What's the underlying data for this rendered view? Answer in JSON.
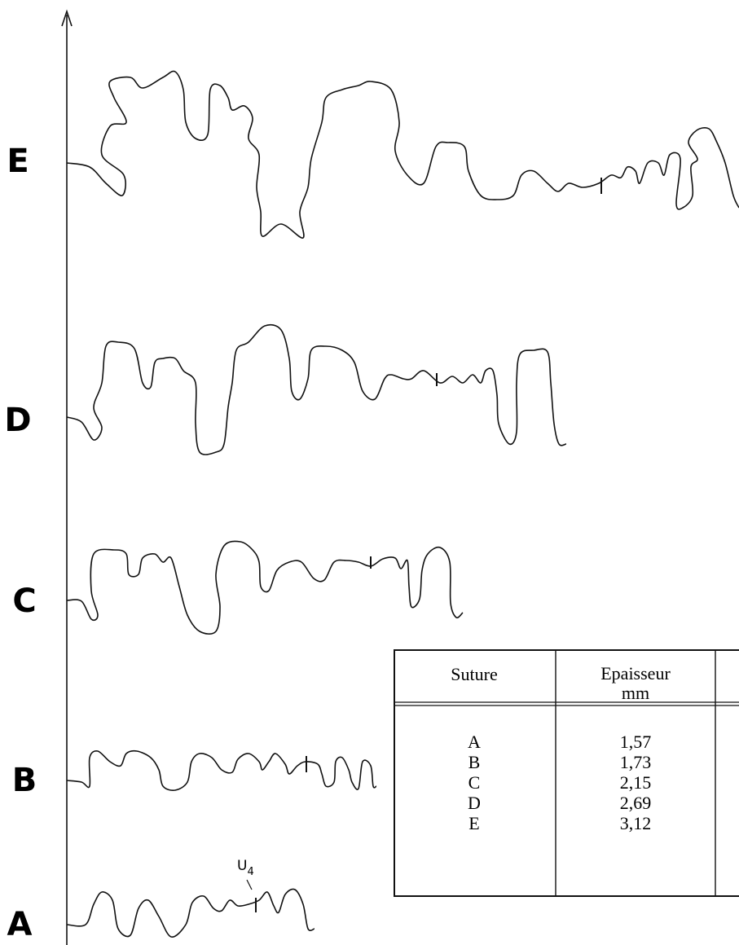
{
  "axis_labels": [
    "E",
    "D",
    "C",
    "B",
    "A"
  ],
  "annotation": {
    "text": "U",
    "subscript": "4"
  },
  "table": {
    "columns": [
      {
        "label": "Suture"
      },
      {
        "label": "Epaisseur",
        "unit": "mm"
      }
    ],
    "rows": [
      [
        "A",
        "1,57"
      ],
      [
        "B",
        "1,73"
      ],
      [
        "C",
        "2,15"
      ],
      [
        "D",
        "2,69"
      ],
      [
        "E",
        "3,12"
      ]
    ]
  }
}
